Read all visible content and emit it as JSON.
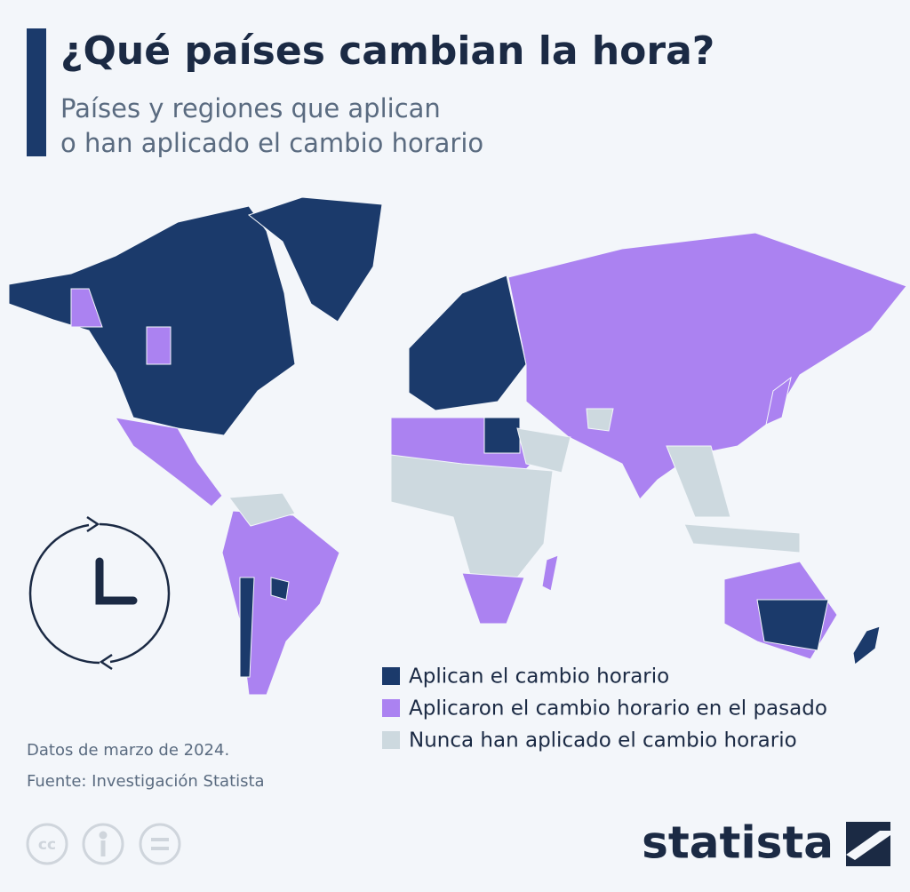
{
  "header": {
    "title": "¿Qué países cambian la hora?",
    "subtitle": [
      "Países y regiones que aplican",
      "o han aplicado el cambio horario"
    ]
  },
  "legend": [
    {
      "name": "Aplican el cambio horario",
      "color": "#1b3a6b"
    },
    {
      "name": "Aplicaron el cambio horario en el pasado",
      "color": "#ab82f1"
    },
    {
      "name": "Nunca han aplicado el cambio horario",
      "color": "#cdd9df"
    }
  ],
  "footer": {
    "notes": [
      "Datos de marzo de 2024.",
      "Fuente: Investigación Statista"
    ],
    "license_icon": "cc",
    "logo": "statista"
  }
}
